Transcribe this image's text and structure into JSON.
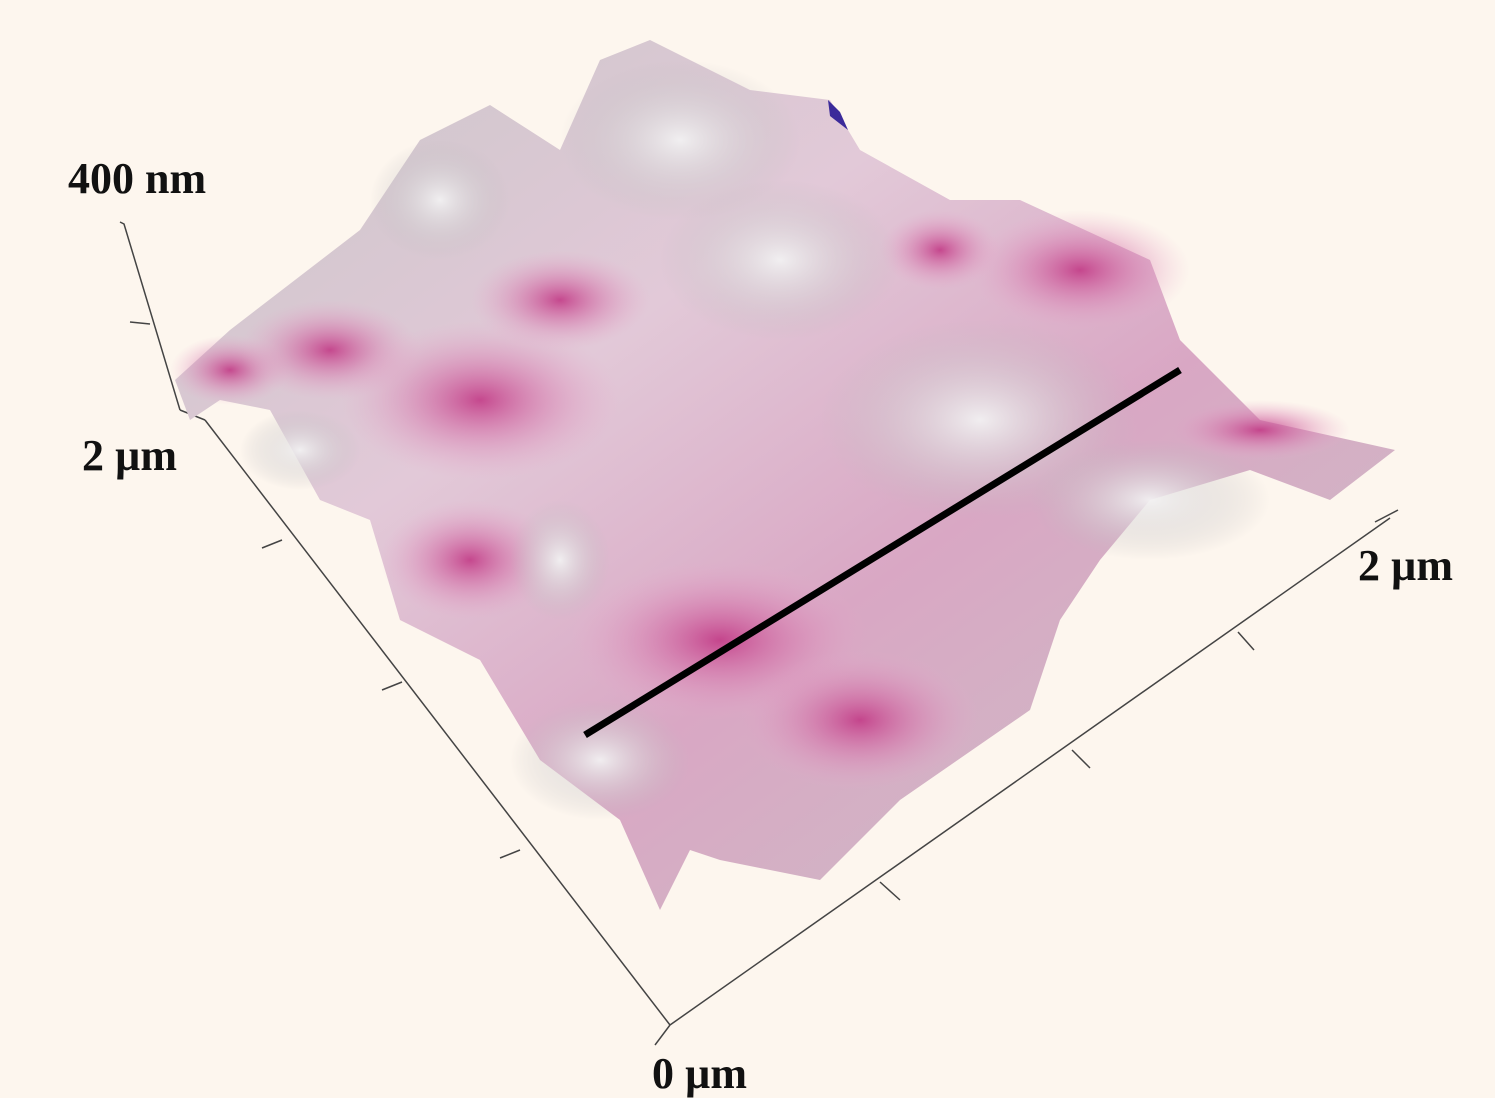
{
  "axes": {
    "z_label": "400 nm",
    "y_label": "2 µm",
    "x_label": "2 µm",
    "origin_label": "0 µm"
  }
}
